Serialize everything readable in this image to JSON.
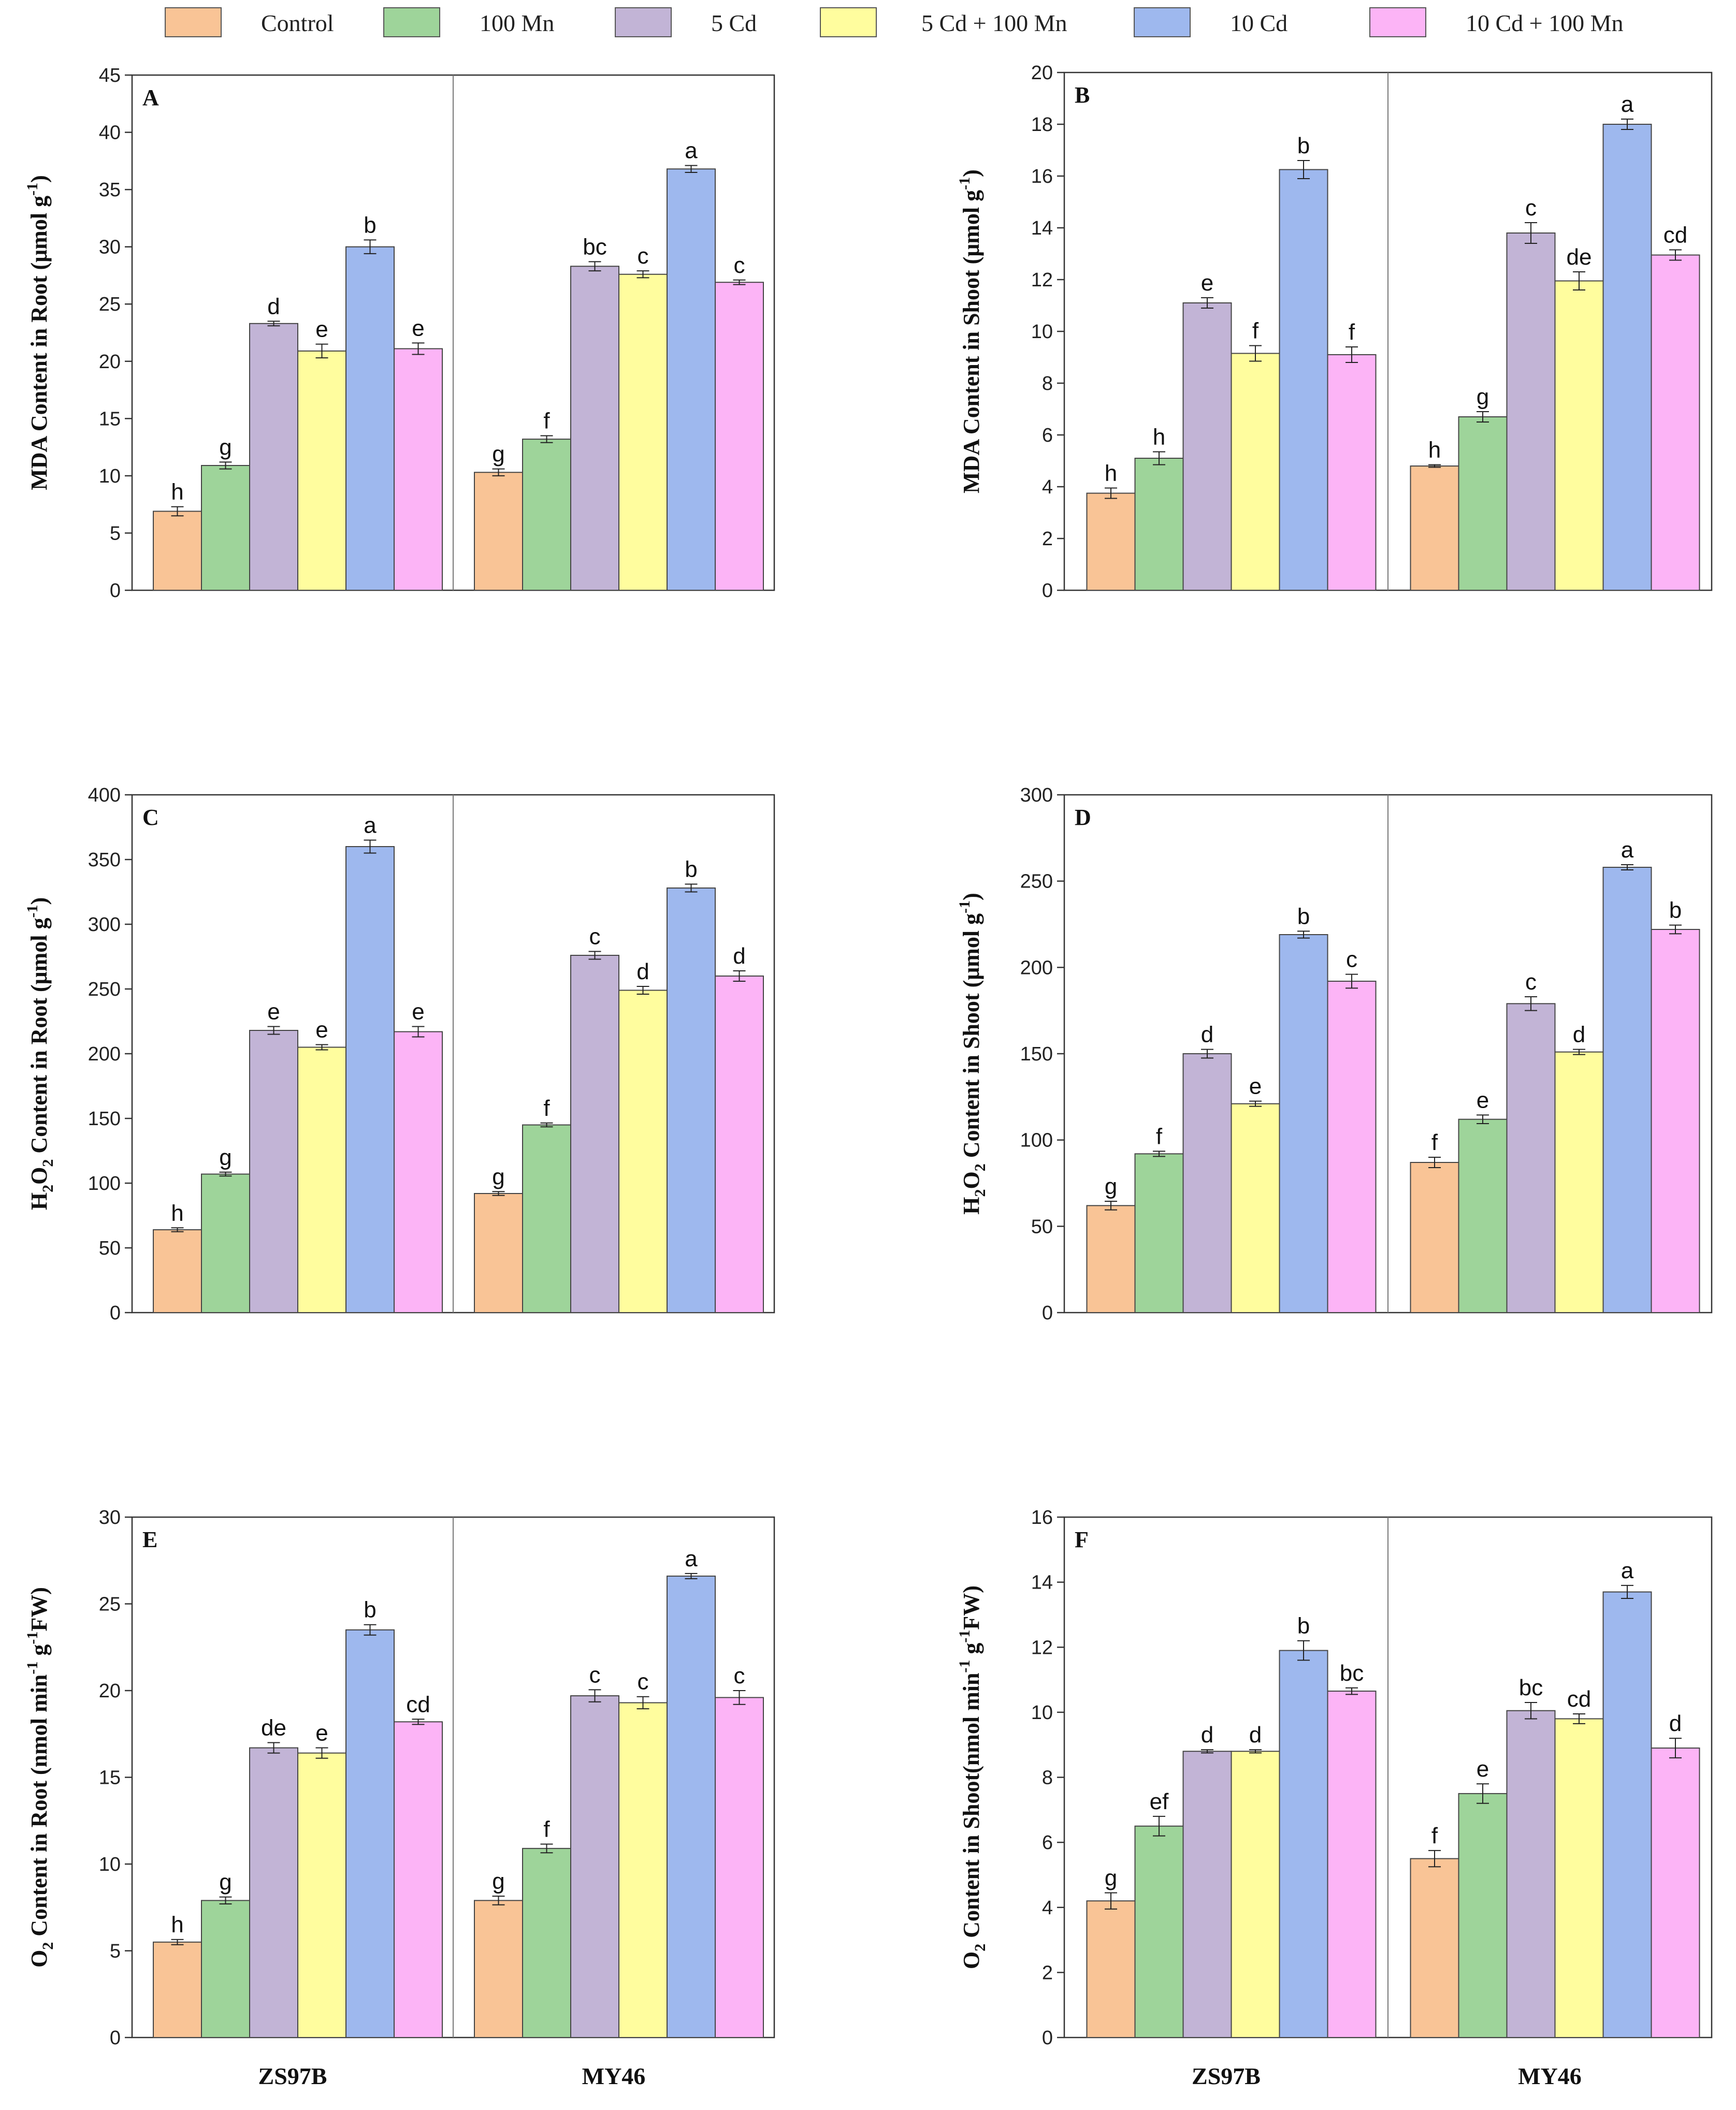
{
  "legend": [
    {
      "label": "Control",
      "color": "#F9C496"
    },
    {
      "label": "100 Mn",
      "color": "#9ED49A"
    },
    {
      "label": "5 Cd",
      "color": "#C2B4D6"
    },
    {
      "label": "5 Cd + 100 Mn",
      "color": "#FFFD9E"
    },
    {
      "label": "10 Cd",
      "color": "#9EB8EE"
    },
    {
      "label": "10 Cd + 100 Mn",
      "color": "#FCB4F6"
    }
  ],
  "chart_data": [
    {
      "type": "bar",
      "panel": "A",
      "ylabel_pre": "MDA Content in Root (μmol g",
      "ylabel_sup": "-1",
      "ylabel_post": ")",
      "ylim": [
        0,
        45
      ],
      "yticks": [
        0,
        5,
        10,
        15,
        20,
        25,
        30,
        35,
        40,
        45
      ],
      "categories": [
        "ZS97B",
        "MY46"
      ],
      "show_xlabels": false,
      "series": [
        {
          "name": "Control",
          "values": [
            6.9,
            10.3
          ],
          "errors": [
            0.4,
            0.3
          ],
          "letters": [
            "h",
            "g"
          ]
        },
        {
          "name": "100 Mn",
          "values": [
            10.9,
            13.2
          ],
          "errors": [
            0.3,
            0.3
          ],
          "letters": [
            "g",
            "f"
          ]
        },
        {
          "name": "5 Cd",
          "values": [
            23.3,
            28.3
          ],
          "errors": [
            0.2,
            0.4
          ],
          "letters": [
            "d",
            "bc"
          ]
        },
        {
          "name": "5 Cd + 100 Mn",
          "values": [
            20.9,
            27.6
          ],
          "errors": [
            0.6,
            0.3
          ],
          "letters": [
            "e",
            "c"
          ]
        },
        {
          "name": "10 Cd",
          "values": [
            30.0,
            36.8
          ],
          "errors": [
            0.6,
            0.3
          ],
          "letters": [
            "b",
            "a"
          ]
        },
        {
          "name": "10 Cd + 100 Mn",
          "values": [
            21.1,
            26.9
          ],
          "errors": [
            0.5,
            0.2
          ],
          "letters": [
            "e",
            "c"
          ]
        }
      ]
    },
    {
      "type": "bar",
      "panel": "B",
      "ylabel_pre": "MDA Content in Shoot (μmol g",
      "ylabel_sup": "-1",
      "ylabel_post": ")",
      "ylim": [
        0,
        20
      ],
      "yticks": [
        0,
        2,
        4,
        6,
        8,
        10,
        12,
        14,
        16,
        18,
        20
      ],
      "categories": [
        "ZS97B",
        "MY46"
      ],
      "show_xlabels": false,
      "series": [
        {
          "name": "Control",
          "values": [
            3.75,
            4.8
          ],
          "errors": [
            0.2,
            0.05
          ],
          "letters": [
            "h",
            "h"
          ]
        },
        {
          "name": "100 Mn",
          "values": [
            5.1,
            6.7
          ],
          "errors": [
            0.25,
            0.2
          ],
          "letters": [
            "h",
            "g"
          ]
        },
        {
          "name": "5 Cd",
          "values": [
            11.1,
            13.8
          ],
          "errors": [
            0.2,
            0.4
          ],
          "letters": [
            "e",
            "c"
          ]
        },
        {
          "name": "5 Cd + 100 Mn",
          "values": [
            9.15,
            11.95
          ],
          "errors": [
            0.3,
            0.35
          ],
          "letters": [
            "f",
            "de"
          ]
        },
        {
          "name": "10 Cd",
          "values": [
            16.25,
            18.0
          ],
          "errors": [
            0.35,
            0.2
          ],
          "letters": [
            "b",
            "a"
          ]
        },
        {
          "name": "10 Cd + 100 Mn",
          "values": [
            9.1,
            12.95
          ],
          "errors": [
            0.3,
            0.2
          ],
          "letters": [
            "f",
            "cd"
          ]
        }
      ]
    },
    {
      "type": "bar",
      "panel": "C",
      "ylabel_pre": "H",
      "ylabel_sub1": "2",
      "ylabel_mid": "O",
      "ylabel_sub2": "2",
      "ylabel_rest": " Content in Root (μmol g",
      "ylabel_sup": "-1",
      "ylabel_post": ")",
      "ylim": [
        0,
        400
      ],
      "yticks": [
        0,
        50,
        100,
        150,
        200,
        250,
        300,
        350,
        400
      ],
      "categories": [
        "ZS97B",
        "MY46"
      ],
      "show_xlabels": false,
      "series": [
        {
          "name": "Control",
          "values": [
            64,
            92
          ],
          "errors": [
            1.5,
            1.5
          ],
          "letters": [
            "h",
            "g"
          ]
        },
        {
          "name": "100 Mn",
          "values": [
            107,
            145
          ],
          "errors": [
            1.5,
            1.5
          ],
          "letters": [
            "g",
            "f"
          ]
        },
        {
          "name": "5 Cd",
          "values": [
            218,
            276
          ],
          "errors": [
            3,
            3
          ],
          "letters": [
            "e",
            "c"
          ]
        },
        {
          "name": "5 Cd + 100 Mn",
          "values": [
            205,
            249
          ],
          "errors": [
            2,
            3
          ],
          "letters": [
            "e",
            "d"
          ]
        },
        {
          "name": "10 Cd",
          "values": [
            360,
            328
          ],
          "errors": [
            5,
            3
          ],
          "letters": [
            "a",
            "b"
          ]
        },
        {
          "name": "10 Cd + 100 Mn",
          "values": [
            217,
            260
          ],
          "errors": [
            4,
            4
          ],
          "letters": [
            "e",
            "d"
          ]
        }
      ]
    },
    {
      "type": "bar",
      "panel": "D",
      "ylabel_pre": "H",
      "ylabel_sub1": "2",
      "ylabel_mid": "O",
      "ylabel_sub2": "2",
      "ylabel_rest": " Content in Shoot (μmol g",
      "ylabel_sup": "-1",
      "ylabel_post": ")",
      "ylim": [
        0,
        300
      ],
      "yticks": [
        0,
        50,
        100,
        150,
        200,
        250,
        300
      ],
      "categories": [
        "ZS97B",
        "MY46"
      ],
      "show_xlabels": false,
      "series": [
        {
          "name": "Control",
          "values": [
            62,
            87
          ],
          "errors": [
            2.5,
            3
          ],
          "letters": [
            "g",
            "f"
          ]
        },
        {
          "name": "100 Mn",
          "values": [
            92,
            112
          ],
          "errors": [
            1.5,
            2.5
          ],
          "letters": [
            "f",
            "e"
          ]
        },
        {
          "name": "5 Cd",
          "values": [
            150,
            179
          ],
          "errors": [
            2.5,
            4
          ],
          "letters": [
            "d",
            "c"
          ]
        },
        {
          "name": "5 Cd + 100 Mn",
          "values": [
            121,
            151
          ],
          "errors": [
            1.5,
            1.5
          ],
          "letters": [
            "e",
            "d"
          ]
        },
        {
          "name": "10 Cd",
          "values": [
            219,
            258
          ],
          "errors": [
            2,
            1.5
          ],
          "letters": [
            "b",
            "a"
          ]
        },
        {
          "name": "10 Cd + 100 Mn",
          "values": [
            192,
            222
          ],
          "errors": [
            4,
            2.5
          ],
          "letters": [
            "c",
            "b"
          ]
        }
      ]
    },
    {
      "type": "bar",
      "panel": "E",
      "ylabel_pre": "O",
      "ylabel_sub1": "2",
      "ylabel_rest": " Content in Root (nmol min",
      "ylabel_sup": "-1",
      "ylabel_mid2": " g",
      "ylabel_sup2": "-1",
      "ylabel_post": "FW)",
      "ylim": [
        0,
        30
      ],
      "yticks": [
        0,
        5,
        10,
        15,
        20,
        25,
        30
      ],
      "categories": [
        "ZS97B",
        "MY46"
      ],
      "show_xlabels": true,
      "series": [
        {
          "name": "Control",
          "values": [
            5.5,
            7.9
          ],
          "errors": [
            0.15,
            0.25
          ],
          "letters": [
            "h",
            "g"
          ]
        },
        {
          "name": "100 Mn",
          "values": [
            7.9,
            10.9
          ],
          "errors": [
            0.2,
            0.25
          ],
          "letters": [
            "g",
            "f"
          ]
        },
        {
          "name": "5 Cd",
          "values": [
            16.7,
            19.7
          ],
          "errors": [
            0.3,
            0.35
          ],
          "letters": [
            "de",
            "c"
          ]
        },
        {
          "name": "5 Cd + 100 Mn",
          "values": [
            16.4,
            19.3
          ],
          "errors": [
            0.3,
            0.35
          ],
          "letters": [
            "e",
            "c"
          ]
        },
        {
          "name": "10 Cd",
          "values": [
            23.5,
            26.6
          ],
          "errors": [
            0.3,
            0.15
          ],
          "letters": [
            "b",
            "a"
          ]
        },
        {
          "name": "10 Cd + 100 Mn",
          "values": [
            18.2,
            19.6
          ],
          "errors": [
            0.15,
            0.4
          ],
          "letters": [
            "cd",
            "c"
          ]
        }
      ]
    },
    {
      "type": "bar",
      "panel": "F",
      "ylabel_pre": "O",
      "ylabel_sub1": "2",
      "ylabel_rest": " Content in Shoot(nmol min",
      "ylabel_sup": "-1",
      "ylabel_mid2": " g",
      "ylabel_sup2": "-1",
      "ylabel_post": "FW)",
      "ylim": [
        0,
        16
      ],
      "yticks": [
        0,
        2,
        4,
        6,
        8,
        10,
        12,
        14,
        16
      ],
      "categories": [
        "ZS97B",
        "MY46"
      ],
      "show_xlabels": true,
      "series": [
        {
          "name": "Control",
          "values": [
            4.2,
            5.5
          ],
          "errors": [
            0.25,
            0.25
          ],
          "letters": [
            "g",
            "f"
          ]
        },
        {
          "name": "100 Mn",
          "values": [
            6.5,
            7.5
          ],
          "errors": [
            0.3,
            0.3
          ],
          "letters": [
            "ef",
            "e"
          ]
        },
        {
          "name": "5 Cd",
          "values": [
            8.8,
            10.05
          ],
          "errors": [
            0.05,
            0.25
          ],
          "letters": [
            "d",
            "bc"
          ]
        },
        {
          "name": "5 Cd + 100 Mn",
          "values": [
            8.8,
            9.8
          ],
          "errors": [
            0.05,
            0.15
          ],
          "letters": [
            "d",
            "cd"
          ]
        },
        {
          "name": "10 Cd",
          "values": [
            11.9,
            13.7
          ],
          "errors": [
            0.3,
            0.2
          ],
          "letters": [
            "b",
            "a"
          ]
        },
        {
          "name": "10 Cd + 100 Mn",
          "values": [
            10.65,
            8.9
          ],
          "errors": [
            0.1,
            0.3
          ],
          "letters": [
            "bc",
            "d"
          ]
        }
      ]
    }
  ]
}
